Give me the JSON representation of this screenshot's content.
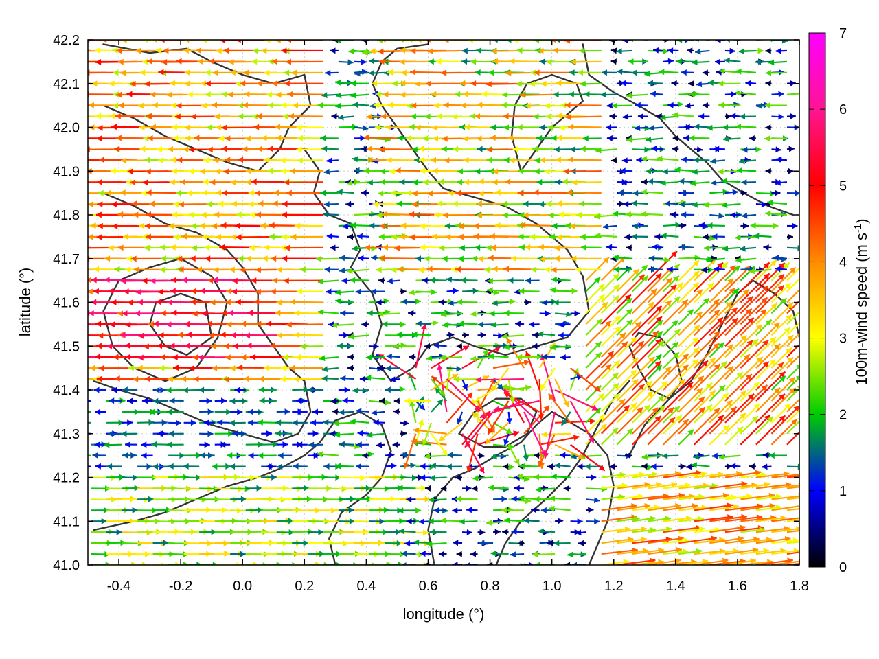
{
  "chart_data": {
    "type": "vector-field",
    "xlabel": "longitude (°)",
    "ylabel": "latitude (°)",
    "xlim": [
      -0.5,
      1.8
    ],
    "ylim": [
      41.0,
      42.2
    ],
    "x_ticks": [
      "-0.4",
      "-0.2",
      "0.0",
      "0.2",
      "0.4",
      "0.6",
      "0.8",
      "1.0",
      "1.2",
      "1.4",
      "1.6",
      "1.8"
    ],
    "y_ticks": [
      "41.0",
      "41.1",
      "41.2",
      "41.3",
      "41.4",
      "41.5",
      "41.6",
      "41.7",
      "41.8",
      "41.9",
      "42.0",
      "42.1",
      "42.2"
    ],
    "grid": true,
    "colorbar": {
      "label": "100m-wind speed (m s",
      "label_superscript": "-1",
      "label_close": ")",
      "range": [
        0,
        7
      ],
      "ticks": [
        "0",
        "1",
        "2",
        "3",
        "4",
        "5",
        "6",
        "7"
      ],
      "colors": [
        "#000000",
        "#0000ff",
        "#00cc00",
        "#ffff00",
        "#ff8c00",
        "#ff0000",
        "#ff00ff"
      ]
    },
    "arrow_field": {
      "grid_step_lon": 0.05,
      "grid_step_lat": 0.025,
      "westerly_zone": "west (u < 0), speed 3-6 m/s for longitude < 0.3",
      "central_zone": "mixed weak winds 0-2 m/s",
      "eastern_south_zone": "east-to-northeast flow 2-5 m/s near 41.0-41.2, 1.2-1.8"
    },
    "contours": [
      [
        [
          -0.45,
          42.19
        ],
        [
          -0.3,
          42.17
        ],
        [
          -0.18,
          42.18
        ],
        [
          -0.1,
          42.15
        ],
        [
          0.0,
          42.12
        ],
        [
          0.1,
          42.1
        ],
        [
          0.2,
          42.12
        ],
        [
          0.22,
          42.05
        ],
        [
          0.15,
          42.0
        ],
        [
          0.12,
          41.95
        ],
        [
          0.05,
          41.9
        ],
        [
          -0.05,
          41.92
        ],
        [
          -0.15,
          41.95
        ],
        [
          -0.25,
          41.98
        ],
        [
          -0.35,
          42.02
        ],
        [
          -0.45,
          42.05
        ]
      ],
      [
        [
          0.2,
          41.95
        ],
        [
          0.25,
          41.9
        ],
        [
          0.23,
          41.85
        ],
        [
          0.28,
          41.8
        ],
        [
          0.35,
          41.78
        ],
        [
          0.38,
          41.72
        ],
        [
          0.35,
          41.68
        ],
        [
          0.42,
          41.62
        ],
        [
          0.45,
          41.55
        ],
        [
          0.42,
          41.48
        ],
        [
          0.48,
          41.42
        ],
        [
          0.55,
          41.45
        ],
        [
          0.6,
          41.5
        ],
        [
          0.68,
          41.52
        ],
        [
          0.75,
          41.5
        ],
        [
          0.85,
          41.48
        ],
        [
          0.95,
          41.5
        ],
        [
          1.05,
          41.52
        ],
        [
          1.12,
          41.58
        ],
        [
          1.1,
          41.66
        ],
        [
          1.05,
          41.72
        ],
        [
          0.95,
          41.78
        ],
        [
          0.85,
          41.82
        ],
        [
          0.75,
          41.84
        ],
        [
          0.65,
          41.86
        ],
        [
          0.6,
          41.9
        ],
        [
          0.55,
          41.95
        ],
        [
          0.5,
          42.0
        ],
        [
          0.45,
          42.05
        ],
        [
          0.42,
          42.1
        ],
        [
          0.45,
          42.15
        ],
        [
          0.5,
          42.18
        ],
        [
          0.6,
          42.19
        ]
      ],
      [
        [
          -0.45,
          41.85
        ],
        [
          -0.35,
          41.82
        ],
        [
          -0.25,
          41.78
        ],
        [
          -0.15,
          41.76
        ],
        [
          -0.05,
          41.72
        ],
        [
          0.0,
          41.68
        ],
        [
          0.05,
          41.62
        ],
        [
          0.05,
          41.55
        ],
        [
          0.1,
          41.5
        ],
        [
          0.15,
          41.45
        ],
        [
          0.2,
          41.42
        ],
        [
          0.22,
          41.35
        ],
        [
          0.18,
          41.3
        ],
        [
          0.1,
          41.28
        ],
        [
          0.0,
          41.3
        ],
        [
          -0.1,
          41.32
        ],
        [
          -0.2,
          41.35
        ],
        [
          -0.3,
          41.38
        ],
        [
          -0.4,
          41.4
        ],
        [
          -0.48,
          41.42
        ]
      ],
      [
        [
          0.62,
          41.0
        ],
        [
          0.6,
          41.08
        ],
        [
          0.62,
          41.15
        ],
        [
          0.68,
          41.2
        ],
        [
          0.75,
          41.22
        ],
        [
          0.82,
          41.25
        ],
        [
          0.9,
          41.28
        ],
        [
          0.95,
          41.32
        ],
        [
          1.0,
          41.35
        ],
        [
          1.05,
          41.33
        ],
        [
          1.12,
          41.3
        ],
        [
          1.18,
          41.25
        ],
        [
          1.2,
          41.18
        ],
        [
          1.18,
          41.1
        ],
        [
          1.15,
          41.05
        ],
        [
          1.12,
          41.0
        ]
      ],
      [
        [
          0.3,
          41.0
        ],
        [
          0.28,
          41.06
        ],
        [
          0.32,
          41.12
        ],
        [
          0.4,
          41.16
        ],
        [
          0.45,
          41.2
        ],
        [
          0.48,
          41.26
        ],
        [
          0.45,
          41.32
        ],
        [
          0.38,
          41.35
        ],
        [
          0.3,
          41.33
        ],
        [
          0.25,
          41.28
        ],
        [
          0.2,
          41.25
        ],
        [
          0.12,
          41.22
        ],
        [
          0.05,
          41.2
        ],
        [
          -0.05,
          41.18
        ],
        [
          -0.15,
          41.15
        ],
        [
          -0.25,
          41.12
        ],
        [
          -0.35,
          41.1
        ],
        [
          -0.48,
          41.08
        ]
      ],
      [
        [
          1.25,
          41.25
        ],
        [
          1.3,
          41.32
        ],
        [
          1.38,
          41.38
        ],
        [
          1.45,
          41.42
        ],
        [
          1.5,
          41.48
        ],
        [
          1.55,
          41.55
        ],
        [
          1.6,
          41.62
        ],
        [
          1.65,
          41.65
        ],
        [
          1.72,
          41.62
        ],
        [
          1.78,
          41.58
        ],
        [
          1.8,
          41.52
        ]
      ],
      [
        [
          1.1,
          42.19
        ],
        [
          1.12,
          42.12
        ],
        [
          1.2,
          42.08
        ],
        [
          1.28,
          42.05
        ],
        [
          1.35,
          42.02
        ],
        [
          1.4,
          41.98
        ],
        [
          1.45,
          41.95
        ],
        [
          1.5,
          41.92
        ],
        [
          1.55,
          41.88
        ],
        [
          1.62,
          41.85
        ],
        [
          1.7,
          41.82
        ],
        [
          1.78,
          41.8
        ]
      ],
      [
        [
          0.9,
          41.9
        ],
        [
          0.95,
          41.95
        ],
        [
          1.0,
          42.0
        ],
        [
          1.05,
          42.03
        ],
        [
          1.1,
          42.06
        ],
        [
          1.08,
          42.1
        ],
        [
          1.0,
          42.12
        ],
        [
          0.92,
          42.1
        ],
        [
          0.88,
          42.05
        ],
        [
          0.87,
          41.98
        ],
        [
          0.9,
          41.9
        ]
      ],
      [
        [
          1.25,
          41.5
        ],
        [
          1.28,
          41.45
        ],
        [
          1.32,
          41.4
        ],
        [
          1.38,
          41.38
        ],
        [
          1.42,
          41.42
        ],
        [
          1.4,
          41.48
        ],
        [
          1.35,
          41.52
        ],
        [
          1.28,
          41.53
        ],
        [
          1.25,
          41.5
        ]
      ],
      [
        [
          0.7,
          41.3
        ],
        [
          0.75,
          41.35
        ],
        [
          0.82,
          41.38
        ],
        [
          0.9,
          41.38
        ],
        [
          0.95,
          41.35
        ],
        [
          0.92,
          41.3
        ],
        [
          0.85,
          41.27
        ],
        [
          0.78,
          41.27
        ],
        [
          0.7,
          41.3
        ]
      ],
      [
        [
          0.82,
          41.0
        ],
        [
          0.85,
          41.05
        ],
        [
          0.9,
          41.1
        ],
        [
          0.98,
          41.15
        ],
        [
          1.05,
          41.2
        ],
        [
          1.1,
          41.25
        ],
        [
          1.15,
          41.32
        ],
        [
          1.2,
          41.38
        ],
        [
          1.25,
          41.42
        ]
      ],
      [
        [
          -0.3,
          41.55
        ],
        [
          -0.25,
          41.5
        ],
        [
          -0.18,
          41.48
        ],
        [
          -0.1,
          41.52
        ],
        [
          -0.12,
          41.6
        ],
        [
          -0.2,
          41.62
        ],
        [
          -0.28,
          41.6
        ],
        [
          -0.3,
          41.55
        ]
      ],
      [
        [
          -0.4,
          41.65
        ],
        [
          -0.3,
          41.68
        ],
        [
          -0.2,
          41.7
        ],
        [
          -0.1,
          41.66
        ],
        [
          -0.05,
          41.6
        ],
        [
          -0.08,
          41.52
        ],
        [
          -0.15,
          41.45
        ],
        [
          -0.25,
          41.42
        ],
        [
          -0.35,
          41.45
        ],
        [
          -0.42,
          41.5
        ],
        [
          -0.45,
          41.58
        ],
        [
          -0.4,
          41.65
        ]
      ]
    ]
  }
}
